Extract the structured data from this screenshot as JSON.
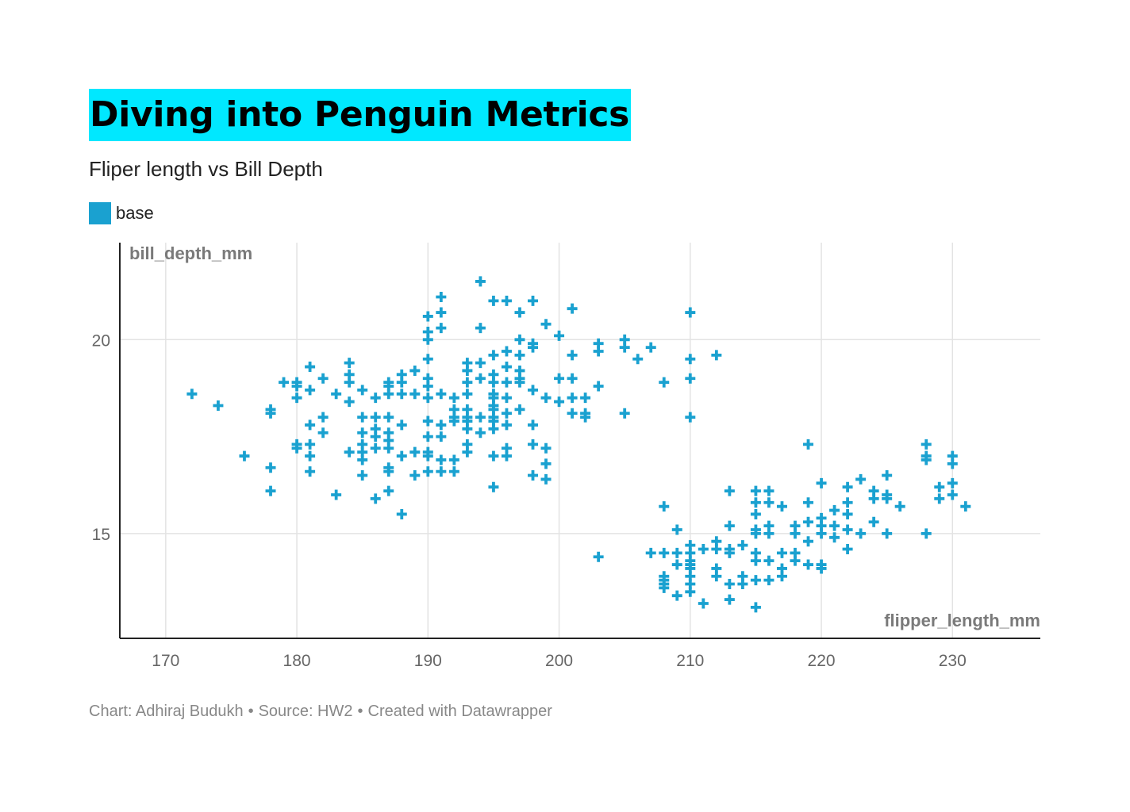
{
  "header": {
    "title": "Diving into Penguin Metrics",
    "subtitle": "Fliper length vs Bill Depth"
  },
  "legend": {
    "label": "base",
    "color": "#1aa1d0"
  },
  "footer": {
    "chart_credit": "Chart: Adhiraj Budukh",
    "source": "Source: HW2",
    "created_with": "Created with Datawrapper",
    "separator": "•"
  },
  "colors": {
    "title_highlight": "#00e8ff",
    "marker": "#1aa1d0",
    "grid": "#e3e3e3",
    "axis": "#222222"
  },
  "chart_data": {
    "type": "scatter",
    "marker": "plus",
    "xlabel": "flipper_length_mm",
    "ylabel": "bill_depth_mm",
    "xlim": [
      166.5,
      236.7
    ],
    "ylim": [
      12.3,
      22.5
    ],
    "xticks": [
      170,
      180,
      190,
      200,
      210,
      220,
      230
    ],
    "yticks": [
      15,
      20
    ],
    "grid": true,
    "legend_position": "top-left",
    "series": [
      {
        "name": "base",
        "points": [
          [
            172,
            18.6
          ],
          [
            174,
            18.3
          ],
          [
            176,
            17.0
          ],
          [
            178,
            18.2
          ],
          [
            178,
            18.1
          ],
          [
            178,
            16.7
          ],
          [
            178,
            16.1
          ],
          [
            179,
            18.9
          ],
          [
            180,
            18.9
          ],
          [
            180,
            18.8
          ],
          [
            180,
            18.5
          ],
          [
            180,
            17.3
          ],
          [
            180,
            17.2
          ],
          [
            181,
            19.3
          ],
          [
            181,
            18.7
          ],
          [
            181,
            17.8
          ],
          [
            181,
            17.3
          ],
          [
            181,
            17.0
          ],
          [
            181,
            16.6
          ],
          [
            182,
            19.0
          ],
          [
            182,
            18.0
          ],
          [
            182,
            17.6
          ],
          [
            183,
            18.6
          ],
          [
            183,
            16.0
          ],
          [
            184,
            19.4
          ],
          [
            184,
            19.1
          ],
          [
            184,
            18.9
          ],
          [
            184,
            18.4
          ],
          [
            184,
            17.1
          ],
          [
            185,
            18.7
          ],
          [
            185,
            18.0
          ],
          [
            185,
            17.6
          ],
          [
            185,
            17.3
          ],
          [
            185,
            17.1
          ],
          [
            185,
            16.9
          ],
          [
            185,
            16.5
          ],
          [
            186,
            18.5
          ],
          [
            186,
            18.0
          ],
          [
            186,
            17.7
          ],
          [
            186,
            17.5
          ],
          [
            186,
            17.2
          ],
          [
            186,
            15.9
          ],
          [
            187,
            18.9
          ],
          [
            187,
            18.8
          ],
          [
            187,
            18.6
          ],
          [
            187,
            18.0
          ],
          [
            187,
            17.6
          ],
          [
            187,
            17.4
          ],
          [
            187,
            17.2
          ],
          [
            187,
            16.7
          ],
          [
            187,
            16.6
          ],
          [
            187,
            16.1
          ],
          [
            188,
            19.1
          ],
          [
            188,
            18.9
          ],
          [
            188,
            18.6
          ],
          [
            188,
            17.8
          ],
          [
            188,
            17.0
          ],
          [
            188,
            15.5
          ],
          [
            189,
            19.2
          ],
          [
            189,
            18.6
          ],
          [
            189,
            17.1
          ],
          [
            189,
            16.5
          ],
          [
            190,
            20.6
          ],
          [
            190,
            20.2
          ],
          [
            190,
            20.0
          ],
          [
            190,
            19.5
          ],
          [
            190,
            19.0
          ],
          [
            190,
            18.8
          ],
          [
            190,
            18.5
          ],
          [
            190,
            17.9
          ],
          [
            190,
            17.5
          ],
          [
            190,
            17.1
          ],
          [
            190,
            17.0
          ],
          [
            190,
            16.6
          ],
          [
            191,
            21.1
          ],
          [
            191,
            20.7
          ],
          [
            191,
            20.3
          ],
          [
            191,
            18.6
          ],
          [
            191,
            17.8
          ],
          [
            191,
            17.5
          ],
          [
            191,
            16.9
          ],
          [
            191,
            16.6
          ],
          [
            192,
            18.5
          ],
          [
            192,
            18.2
          ],
          [
            192,
            18.0
          ],
          [
            192,
            17.9
          ],
          [
            192,
            16.9
          ],
          [
            192,
            16.6
          ],
          [
            193,
            19.4
          ],
          [
            193,
            19.2
          ],
          [
            193,
            18.9
          ],
          [
            193,
            18.6
          ],
          [
            193,
            18.2
          ],
          [
            193,
            18.0
          ],
          [
            193,
            17.9
          ],
          [
            193,
            17.7
          ],
          [
            193,
            17.3
          ],
          [
            193,
            17.1
          ],
          [
            194,
            21.5
          ],
          [
            194,
            20.3
          ],
          [
            194,
            19.4
          ],
          [
            194,
            19.0
          ],
          [
            194,
            18.0
          ],
          [
            194,
            17.6
          ],
          [
            195,
            21.0
          ],
          [
            195,
            19.6
          ],
          [
            195,
            19.1
          ],
          [
            195,
            18.9
          ],
          [
            195,
            18.6
          ],
          [
            195,
            18.5
          ],
          [
            195,
            18.3
          ],
          [
            195,
            18.2
          ],
          [
            195,
            18.0
          ],
          [
            195,
            17.9
          ],
          [
            195,
            17.7
          ],
          [
            195,
            17.0
          ],
          [
            195,
            16.2
          ],
          [
            196,
            21.0
          ],
          [
            196,
            19.7
          ],
          [
            196,
            19.3
          ],
          [
            196,
            18.9
          ],
          [
            196,
            18.5
          ],
          [
            196,
            18.1
          ],
          [
            196,
            17.8
          ],
          [
            196,
            17.2
          ],
          [
            196,
            17.0
          ],
          [
            197,
            20.7
          ],
          [
            197,
            20.0
          ],
          [
            197,
            19.6
          ],
          [
            197,
            19.2
          ],
          [
            197,
            19.0
          ],
          [
            197,
            18.9
          ],
          [
            197,
            18.2
          ],
          [
            198,
            21.0
          ],
          [
            198,
            19.9
          ],
          [
            198,
            19.8
          ],
          [
            198,
            18.7
          ],
          [
            198,
            17.8
          ],
          [
            198,
            17.3
          ],
          [
            198,
            16.5
          ],
          [
            199,
            20.4
          ],
          [
            199,
            18.5
          ],
          [
            199,
            17.2
          ],
          [
            199,
            16.8
          ],
          [
            199,
            16.4
          ],
          [
            200,
            20.1
          ],
          [
            200,
            19.0
          ],
          [
            200,
            18.4
          ],
          [
            201,
            20.8
          ],
          [
            201,
            19.6
          ],
          [
            201,
            19.0
          ],
          [
            201,
            18.5
          ],
          [
            201,
            18.1
          ],
          [
            202,
            18.5
          ],
          [
            202,
            18.1
          ],
          [
            202,
            18.0
          ],
          [
            203,
            19.9
          ],
          [
            203,
            19.7
          ],
          [
            203,
            18.8
          ],
          [
            203,
            14.4
          ],
          [
            205,
            20.0
          ],
          [
            205,
            19.8
          ],
          [
            205,
            18.1
          ],
          [
            206,
            19.5
          ],
          [
            207,
            19.8
          ],
          [
            207,
            14.5
          ],
          [
            208,
            18.9
          ],
          [
            208,
            15.7
          ],
          [
            208,
            14.5
          ],
          [
            208,
            13.9
          ],
          [
            208,
            13.8
          ],
          [
            208,
            13.7
          ],
          [
            208,
            13.6
          ],
          [
            209,
            15.1
          ],
          [
            209,
            14.5
          ],
          [
            209,
            14.2
          ],
          [
            209,
            13.4
          ],
          [
            210,
            20.7
          ],
          [
            210,
            19.5
          ],
          [
            210,
            19.0
          ],
          [
            210,
            18.0
          ],
          [
            210,
            14.7
          ],
          [
            210,
            14.5
          ],
          [
            210,
            14.3
          ],
          [
            210,
            14.2
          ],
          [
            210,
            14.1
          ],
          [
            210,
            13.9
          ],
          [
            210,
            13.7
          ],
          [
            210,
            13.5
          ],
          [
            211,
            14.6
          ],
          [
            211,
            13.2
          ],
          [
            212,
            19.6
          ],
          [
            212,
            14.8
          ],
          [
            212,
            14.6
          ],
          [
            212,
            14.1
          ],
          [
            212,
            13.9
          ],
          [
            213,
            16.1
          ],
          [
            213,
            15.2
          ],
          [
            213,
            14.6
          ],
          [
            213,
            14.5
          ],
          [
            213,
            13.7
          ],
          [
            213,
            13.3
          ],
          [
            214,
            14.7
          ],
          [
            214,
            13.9
          ],
          [
            214,
            13.7
          ],
          [
            215,
            16.1
          ],
          [
            215,
            15.8
          ],
          [
            215,
            15.5
          ],
          [
            215,
            15.1
          ],
          [
            215,
            15.0
          ],
          [
            215,
            14.5
          ],
          [
            215,
            14.3
          ],
          [
            215,
            13.8
          ],
          [
            215,
            13.1
          ],
          [
            216,
            16.1
          ],
          [
            216,
            15.8
          ],
          [
            216,
            15.2
          ],
          [
            216,
            15.0
          ],
          [
            216,
            14.3
          ],
          [
            216,
            13.8
          ],
          [
            217,
            15.7
          ],
          [
            217,
            14.5
          ],
          [
            217,
            14.1
          ],
          [
            217,
            13.9
          ],
          [
            218,
            15.2
          ],
          [
            218,
            15.0
          ],
          [
            218,
            14.5
          ],
          [
            218,
            14.3
          ],
          [
            219,
            17.3
          ],
          [
            219,
            15.8
          ],
          [
            219,
            15.3
          ],
          [
            219,
            14.8
          ],
          [
            219,
            14.2
          ],
          [
            220,
            16.3
          ],
          [
            220,
            15.4
          ],
          [
            220,
            15.2
          ],
          [
            220,
            15.0
          ],
          [
            220,
            14.2
          ],
          [
            220,
            14.1
          ],
          [
            221,
            15.6
          ],
          [
            221,
            15.2
          ],
          [
            221,
            14.9
          ],
          [
            222,
            16.2
          ],
          [
            222,
            15.8
          ],
          [
            222,
            15.5
          ],
          [
            222,
            15.1
          ],
          [
            222,
            14.6
          ],
          [
            223,
            16.4
          ],
          [
            223,
            15.0
          ],
          [
            224,
            16.1
          ],
          [
            224,
            15.9
          ],
          [
            224,
            15.3
          ],
          [
            225,
            16.5
          ],
          [
            225,
            16.0
          ],
          [
            225,
            15.9
          ],
          [
            225,
            15.0
          ],
          [
            226,
            15.7
          ],
          [
            228,
            17.3
          ],
          [
            228,
            17.0
          ],
          [
            228,
            16.9
          ],
          [
            228,
            15.0
          ],
          [
            229,
            16.2
          ],
          [
            229,
            15.9
          ],
          [
            230,
            17.0
          ],
          [
            230,
            16.8
          ],
          [
            230,
            16.3
          ],
          [
            230,
            16.0
          ],
          [
            231,
            15.7
          ]
        ]
      }
    ]
  }
}
